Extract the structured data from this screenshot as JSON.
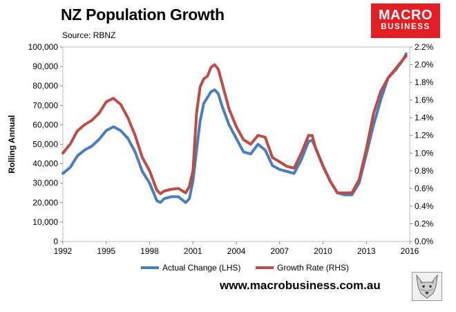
{
  "header": {
    "title": "NZ Population Growth",
    "source": "Source: RBNZ"
  },
  "logo": {
    "line1": "MACRO",
    "line2": "BUSINESS"
  },
  "footer": {
    "website": "www.macrobusiness.com.au"
  },
  "colors": {
    "actual_change": "#4a7ebb",
    "growth_rate": "#be4b48",
    "logo_background": "#e31e24"
  },
  "chart_data": {
    "type": "line",
    "title": "NZ Population Growth",
    "ylabel": "Rolling Annual",
    "xlabel": "",
    "grid": false,
    "legend_position": "bottom",
    "xlim": [
      1992,
      2016
    ],
    "ylim": [
      0,
      100000
    ],
    "y2lim": [
      0.0,
      2.2
    ],
    "x_ticks": [
      "1992",
      "1995",
      "1998",
      "2001",
      "2004",
      "2007",
      "2010",
      "2013",
      "2016"
    ],
    "y_ticks": [
      "0",
      "10,000",
      "20,000",
      "30,000",
      "40,000",
      "50,000",
      "60,000",
      "70,000",
      "80,000",
      "90,000",
      "100,000"
    ],
    "y2_ticks": [
      "0.0%",
      "0.2%",
      "0.4%",
      "0.6%",
      "0.8%",
      "1.0%",
      "1.2%",
      "1.4%",
      "1.6%",
      "1.8%",
      "2.0%",
      "2.2%"
    ],
    "series": [
      {
        "name": "Actual Change (LHS)",
        "axis": "left",
        "x": [
          1992.0,
          1992.5,
          1993.0,
          1993.5,
          1994.0,
          1994.5,
          1995.0,
          1995.5,
          1996.0,
          1996.5,
          1997.0,
          1997.5,
          1998.0,
          1998.5,
          1998.75,
          1999.0,
          1999.5,
          2000.0,
          2000.5,
          2000.75,
          2001.0,
          2001.25,
          2001.5,
          2001.75,
          2002.0,
          2002.25,
          2002.5,
          2002.75,
          2003.0,
          2003.5,
          2004.0,
          2004.5,
          2005.0,
          2005.5,
          2006.0,
          2006.5,
          2007.0,
          2007.5,
          2008.0,
          2008.5,
          2009.0,
          2009.25,
          2009.5,
          2010.0,
          2010.5,
          2011.0,
          2011.5,
          2012.0,
          2012.5,
          2013.0,
          2013.5,
          2014.0,
          2014.5,
          2015.0,
          2015.5,
          2015.75
        ],
        "values": [
          35000,
          38000,
          44000,
          47000,
          49000,
          52500,
          57000,
          59000,
          57000,
          53000,
          46000,
          36000,
          30000,
          21000,
          20000,
          22000,
          23000,
          23000,
          20000,
          22000,
          31000,
          47000,
          62000,
          71000,
          74000,
          77000,
          78000,
          76000,
          70000,
          60000,
          53000,
          46000,
          45000,
          50000,
          47000,
          39000,
          37000,
          36000,
          35000,
          42000,
          51500,
          52000,
          48000,
          39000,
          31000,
          25000,
          24000,
          24000,
          30000,
          45000,
          60000,
          73000,
          84000,
          88000,
          93000,
          96500
        ]
      },
      {
        "name": "Growth Rate (RHS)",
        "axis": "right",
        "x": [
          1992.0,
          1992.5,
          1993.0,
          1993.5,
          1994.0,
          1994.5,
          1995.0,
          1995.5,
          1996.0,
          1996.5,
          1997.0,
          1997.5,
          1998.0,
          1998.5,
          1998.75,
          1999.0,
          1999.5,
          2000.0,
          2000.5,
          2000.75,
          2001.0,
          2001.25,
          2001.5,
          2001.75,
          2002.0,
          2002.25,
          2002.5,
          2002.75,
          2003.0,
          2003.5,
          2004.0,
          2004.5,
          2005.0,
          2005.5,
          2006.0,
          2006.5,
          2007.0,
          2007.5,
          2008.0,
          2008.5,
          2009.0,
          2009.25,
          2009.5,
          2010.0,
          2010.5,
          2011.0,
          2011.5,
          2012.0,
          2012.5,
          2013.0,
          2013.5,
          2014.0,
          2014.5,
          2015.0,
          2015.5,
          2015.75
        ],
        "values": [
          1.0,
          1.1,
          1.25,
          1.32,
          1.37,
          1.45,
          1.58,
          1.62,
          1.55,
          1.4,
          1.2,
          0.95,
          0.8,
          0.58,
          0.54,
          0.57,
          0.59,
          0.6,
          0.55,
          0.62,
          0.8,
          1.45,
          1.75,
          1.84,
          1.87,
          1.97,
          2.0,
          1.95,
          1.8,
          1.5,
          1.3,
          1.15,
          1.1,
          1.2,
          1.18,
          0.95,
          0.9,
          0.85,
          0.83,
          1.0,
          1.2,
          1.2,
          1.05,
          0.85,
          0.68,
          0.55,
          0.55,
          0.55,
          0.7,
          1.05,
          1.45,
          1.7,
          1.85,
          1.95,
          2.05,
          2.1
        ]
      }
    ]
  }
}
